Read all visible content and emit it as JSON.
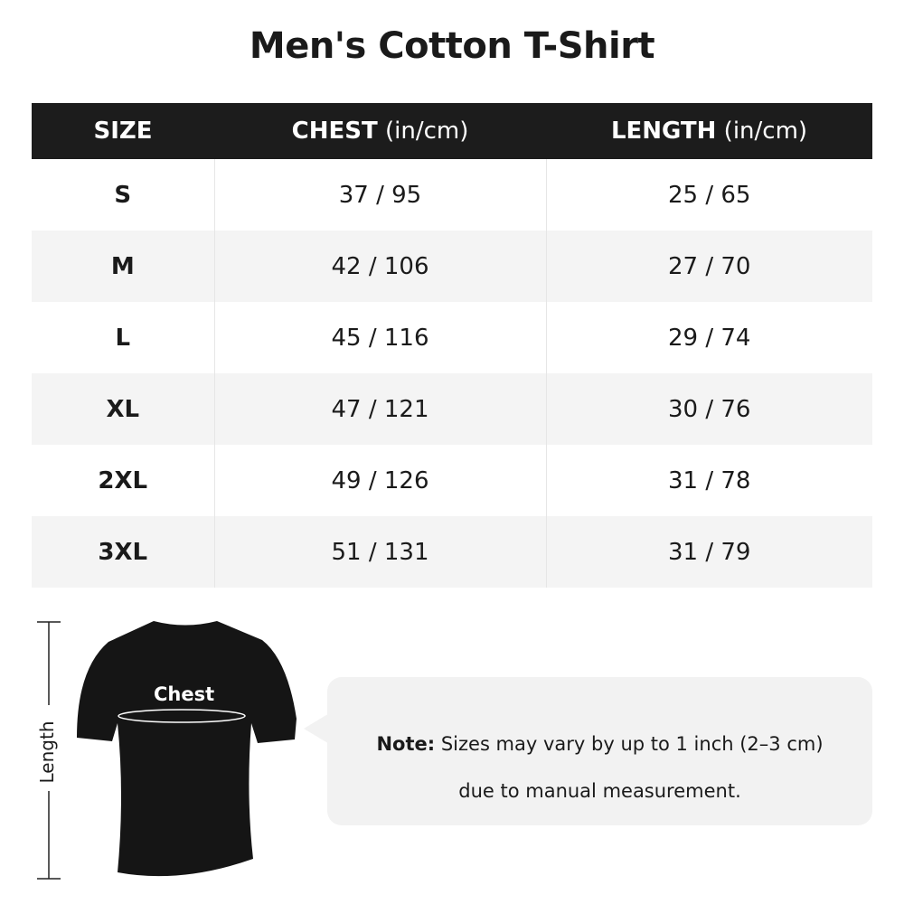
{
  "title": "Men's Cotton T-Shirt",
  "columns": [
    {
      "label": "SIZE",
      "unit": ""
    },
    {
      "label": "CHEST",
      "unit": " (in/cm)"
    },
    {
      "label": "LENGTH",
      "unit": " (in/cm)"
    }
  ],
  "rows": [
    {
      "size": "S",
      "chest": "37 / 95",
      "length": "25 / 65"
    },
    {
      "size": "M",
      "chest": "42 / 106",
      "length": "27 / 70"
    },
    {
      "size": "L",
      "chest": "45 / 116",
      "length": "29 / 74"
    },
    {
      "size": "XL",
      "chest": "47 / 121",
      "length": "30 / 76"
    },
    {
      "size": "2XL",
      "chest": "49 / 126",
      "length": "31 / 78"
    },
    {
      "size": "3XL",
      "chest": "51 / 131",
      "length": "31 / 79"
    }
  ],
  "diagram": {
    "chest_label": "Chest",
    "length_label": "Length"
  },
  "note": {
    "label": "Note:",
    "line1": " Sizes may vary by up to 1 inch (2–3 cm)",
    "line2": "due to manual measurement."
  }
}
